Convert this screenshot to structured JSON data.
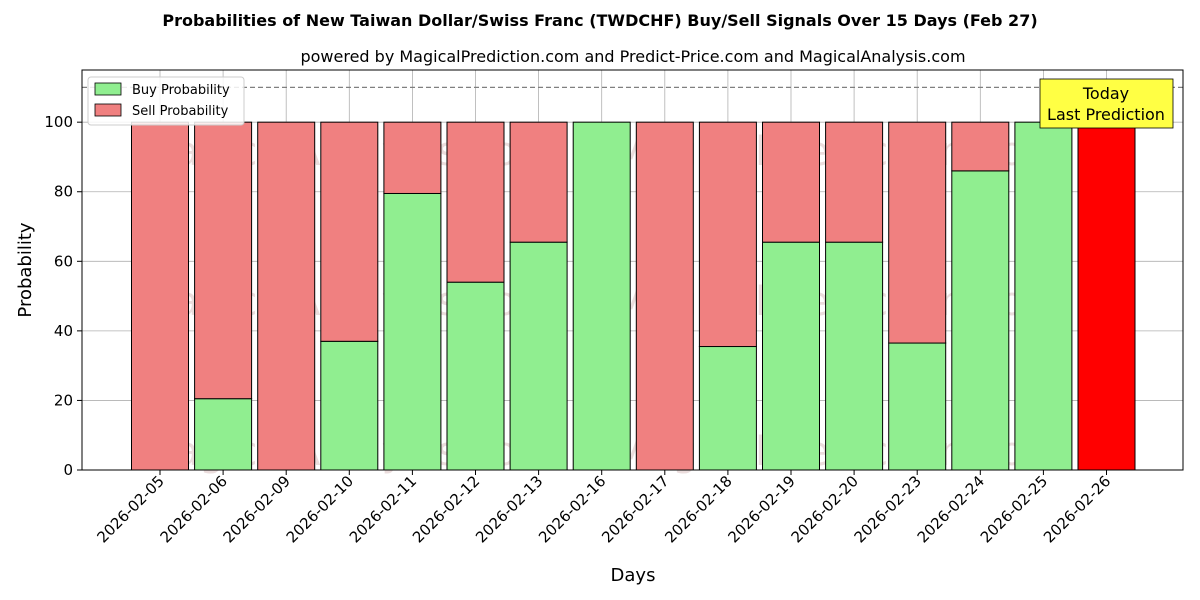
{
  "chart_data": {
    "type": "bar",
    "stacked": true,
    "title": "Probabilities of New Taiwan Dollar/Swiss Franc (TWDCHF) Buy/Sell Signals Over 15 Days (Feb 27)",
    "subtitle": "powered by MagicalPrediction.com and Predict-Price.com and MagicalAnalysis.com",
    "xlabel": "Days",
    "ylabel": "Probability",
    "ylim": [
      0,
      115
    ],
    "yticks": [
      0,
      20,
      40,
      60,
      80,
      100
    ],
    "grid": true,
    "reference_line": 110,
    "legend_position": "top-left",
    "categories": [
      "2026-02-05",
      "2026-02-06",
      "2026-02-09",
      "2026-02-10",
      "2026-02-11",
      "2026-02-12",
      "2026-02-13",
      "2026-02-16",
      "2026-02-17",
      "2026-02-18",
      "2026-02-19",
      "2026-02-20",
      "2026-02-23",
      "2026-02-24",
      "2026-02-25",
      "2026-02-26"
    ],
    "series": [
      {
        "name": "Buy Probability",
        "color": "#90ee90",
        "values": [
          0,
          20.5,
          0,
          37,
          79.5,
          54,
          65.5,
          100,
          0,
          35.5,
          65.5,
          65.5,
          36.5,
          86,
          100,
          0
        ]
      },
      {
        "name": "Sell Probability",
        "color": "#f08080",
        "values": [
          100,
          79.5,
          100,
          63,
          20.5,
          46,
          34.5,
          0,
          100,
          64.5,
          34.5,
          34.5,
          63.5,
          14,
          0,
          100
        ]
      }
    ],
    "highlight": {
      "index": 15,
      "color": "#ff0000"
    },
    "annotation": {
      "line1": "Today",
      "line2": "Last Prediction",
      "color": "#ffff44"
    },
    "watermark": {
      "left": "MagicalAnalysis.com",
      "right": "MagicalPrediction.com"
    }
  }
}
